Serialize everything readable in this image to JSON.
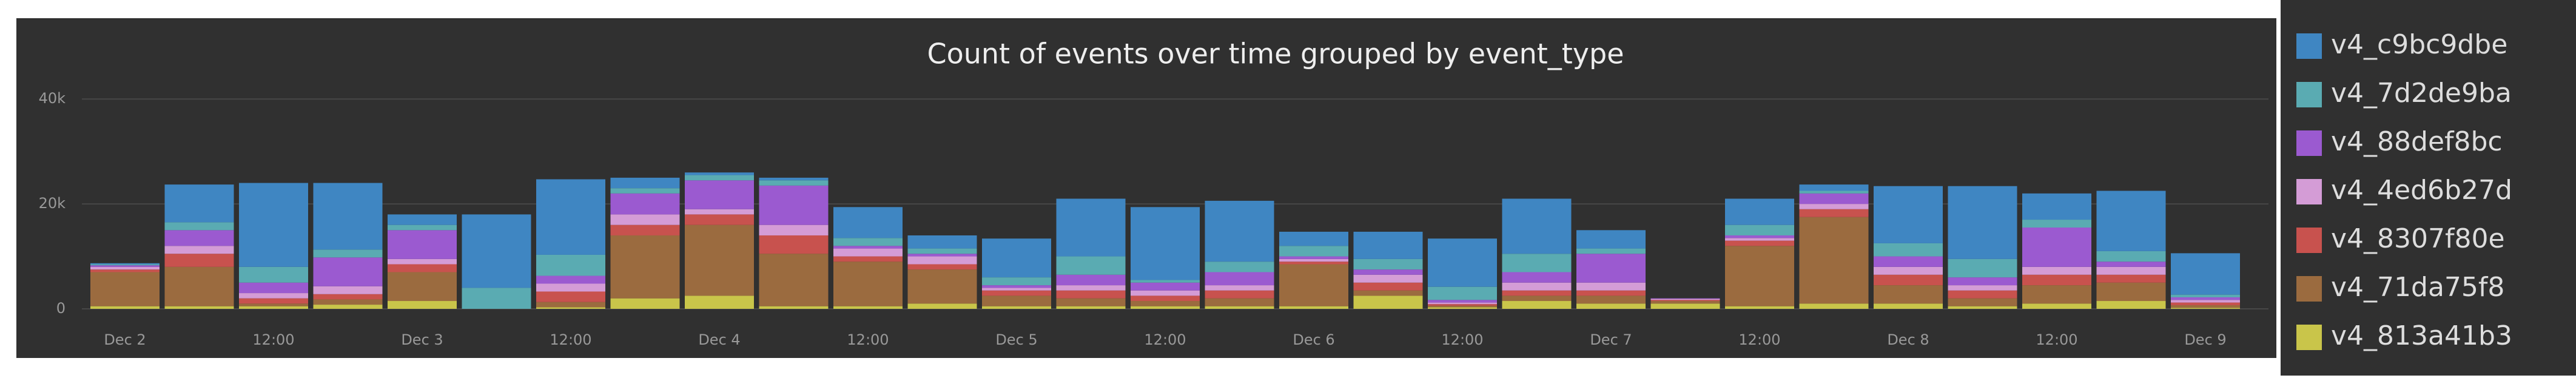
{
  "chart_data": {
    "type": "bar",
    "stacked": true,
    "title": "Count of events over time grouped by event_type",
    "categories": [
      "Dec 2",
      null,
      "12:00",
      null,
      "Dec 3",
      null,
      "12:00",
      null,
      "Dec 4",
      null,
      "12:00",
      null,
      "Dec 5",
      null,
      "12:00",
      null,
      "Dec 6",
      null,
      "12:00",
      null,
      "Dec 7",
      null,
      "12:00",
      null,
      "Dec 8",
      null,
      "12:00",
      null,
      "Dec 9"
    ],
    "series": [
      {
        "name": "v4_c9bc9dbe",
        "color": "#3f86c2",
        "values": [
          200,
          7200,
          16000,
          12700,
          2000,
          14000,
          14400,
          2000,
          500,
          500,
          5900,
          2500,
          7400,
          11000,
          13900,
          11600,
          2700,
          5200,
          9200,
          10500,
          3500,
          0,
          5000,
          1200,
          10900,
          13900,
          5000,
          11500,
          7900
        ]
      },
      {
        "name": "v4_7d2de9ba",
        "color": "#5aabb2",
        "values": [
          200,
          1500,
          3000,
          1500,
          1000,
          4000,
          4000,
          1000,
          1000,
          1000,
          1500,
          1000,
          1500,
          3500,
          500,
          2000,
          2000,
          2000,
          2500,
          3500,
          1000,
          0,
          2000,
          500,
          2500,
          3500,
          1500,
          2000,
          500
        ]
      },
      {
        "name": "v4_88def8bc",
        "color": "#9b5ad0",
        "values": [
          300,
          3000,
          2000,
          5500,
          5500,
          0,
          1500,
          4000,
          5500,
          7500,
          500,
          500,
          500,
          2000,
          1500,
          2500,
          500,
          1000,
          500,
          2000,
          5500,
          100,
          500,
          2000,
          2000,
          1500,
          7500,
          1000,
          500
        ]
      },
      {
        "name": "v4_4ed6b27d",
        "color": "#d49cd6",
        "values": [
          500,
          1500,
          1000,
          1500,
          1000,
          0,
          1500,
          2000,
          1000,
          2000,
          1500,
          1500,
          500,
          1000,
          1000,
          1000,
          500,
          1500,
          300,
          1500,
          1500,
          200,
          500,
          1000,
          1500,
          1000,
          1500,
          1500,
          500
        ]
      },
      {
        "name": "v4_8307f80e",
        "color": "#c8524e",
        "values": [
          500,
          2500,
          1000,
          1000,
          1500,
          0,
          2000,
          2000,
          2000,
          3500,
          1000,
          1000,
          1000,
          1500,
          1000,
          1500,
          500,
          1500,
          300,
          1000,
          1000,
          200,
          1000,
          1500,
          2000,
          1500,
          2000,
          1500,
          500
        ]
      },
      {
        "name": "v4_71da75f8",
        "color": "#9b6b3f",
        "values": [
          6500,
          7500,
          500,
          1000,
          5500,
          0,
          1000,
          12000,
          13500,
          10000,
          8500,
          6500,
          2000,
          1500,
          1000,
          1500,
          8000,
          1000,
          300,
          1000,
          1500,
          500,
          11500,
          16500,
          3500,
          1500,
          3500,
          3500,
          500
        ]
      },
      {
        "name": "v4_813a41b3",
        "color": "#c9c54a",
        "values": [
          500,
          500,
          500,
          800,
          1500,
          0,
          300,
          2000,
          2500,
          500,
          500,
          1000,
          500,
          500,
          500,
          500,
          500,
          2500,
          300,
          1500,
          1000,
          1000,
          500,
          1000,
          1000,
          500,
          1000,
          1500,
          200
        ]
      }
    ],
    "ylim": [
      0,
      45000
    ],
    "yticks": [
      0,
      {
        "value": 20000,
        "label": "20k"
      },
      {
        "value": 40000,
        "label": "40k"
      }
    ],
    "grid": true
  }
}
